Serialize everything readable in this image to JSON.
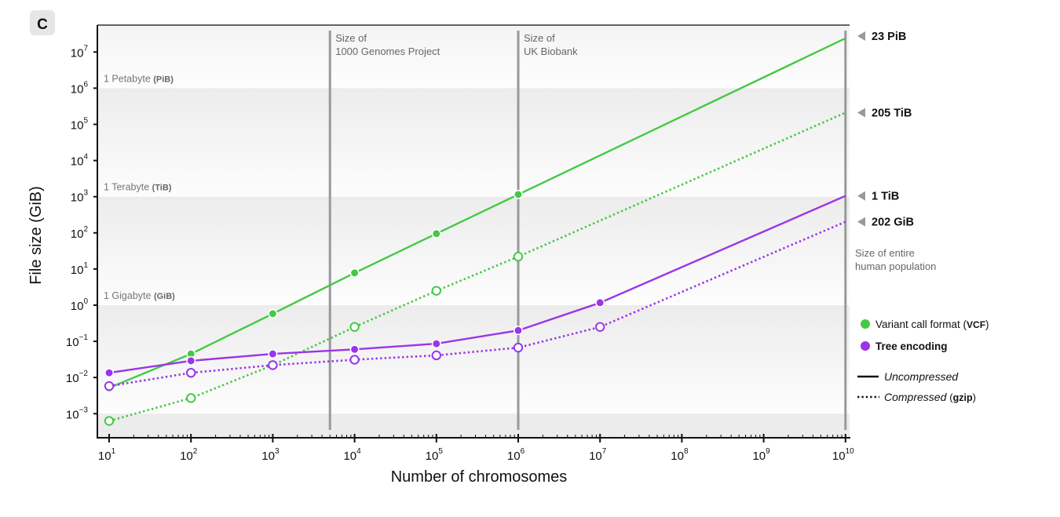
{
  "panel_label": "C",
  "chart_data": {
    "type": "line",
    "title": "",
    "xlabel": "Number of chromosomes",
    "ylabel": "File size (GiB)",
    "xscale": "log",
    "yscale": "log",
    "xlim": [
      10,
      10000000000
    ],
    "ylim": [
      0.0003,
      50000000
    ],
    "x_tick_exponents": [
      1,
      2,
      3,
      4,
      5,
      6,
      7,
      8,
      9,
      10
    ],
    "y_tick_exponents": [
      -3,
      -2,
      -1,
      0,
      1,
      2,
      3,
      4,
      5,
      6,
      7
    ],
    "grid": false,
    "bands": [
      {
        "label": "1 Petabyte",
        "unit": "PiB",
        "value": 1000000
      },
      {
        "label": "1 Terabyte",
        "unit": "TiB",
        "value": 1000
      },
      {
        "label": "1 Gigabyte",
        "unit": "GiB",
        "value": 1
      }
    ],
    "vertical_markers": [
      {
        "x": 5000,
        "label_line1": "Size of",
        "label_line2": "1000 Genomes Project"
      },
      {
        "x": 1000000,
        "label_line1": "Size of",
        "label_line2": "UK Biobank"
      },
      {
        "x": 10000000000,
        "label_line1": "Size of entire",
        "label_line2": "human population"
      }
    ],
    "series": [
      {
        "name": "Variant call format (VCF) — Uncompressed",
        "format": "vcf",
        "compression": "uncompressed",
        "color": "#44c944",
        "style": "solid",
        "marker": "filled",
        "x": [
          10,
          100,
          1000,
          10000,
          100000,
          1000000
        ],
        "values": [
          0.0052,
          0.045,
          0.58,
          7.8,
          95,
          1150
        ],
        "end_x": 10000000000,
        "end_value": 24000000,
        "end_label": "23 PiB"
      },
      {
        "name": "Variant call format (VCF) — Compressed (gzip)",
        "format": "vcf",
        "compression": "gzip",
        "color": "#44c944",
        "style": "dotted",
        "marker": "open",
        "x": [
          10,
          100,
          1000,
          10000,
          100000,
          1000000
        ],
        "values": [
          0.00063,
          0.0027,
          0.022,
          0.25,
          2.5,
          22
        ],
        "end_x": 10000000000,
        "end_value": 210000,
        "end_label": "205 TiB"
      },
      {
        "name": "Tree encoding — Uncompressed",
        "format": "tree",
        "compression": "uncompressed",
        "color": "#9b35e8",
        "style": "solid",
        "marker": "filled",
        "x": [
          10,
          100,
          1000,
          10000,
          100000,
          1000000,
          10000000
        ],
        "values": [
          0.0135,
          0.029,
          0.045,
          0.06,
          0.086,
          0.2,
          1.17
        ],
        "end_x": 10000000000,
        "end_value": 1050,
        "end_label": "1 TiB"
      },
      {
        "name": "Tree encoding — Compressed (gzip)",
        "format": "tree",
        "compression": "gzip",
        "color": "#9b35e8",
        "style": "dotted",
        "marker": "open",
        "x": [
          10,
          100,
          1000,
          10000,
          100000,
          1000000,
          10000000
        ],
        "values": [
          0.0058,
          0.0135,
          0.022,
          0.031,
          0.041,
          0.067,
          0.25
        ],
        "end_x": 10000000000,
        "end_value": 202,
        "end_label": "202 GiB"
      }
    ],
    "legend": {
      "position": "right",
      "formats": [
        {
          "label": "Variant call format (",
          "label_bold": "VCF",
          "label_after": ")",
          "color": "#44c944"
        },
        {
          "label_bold": "Tree encoding",
          "color": "#9b35e8"
        }
      ],
      "styles": [
        {
          "label": "Uncompressed",
          "style": "solid"
        },
        {
          "label": "Compressed",
          "suffix_bold": "gzip",
          "style": "dotted"
        }
      ]
    }
  }
}
